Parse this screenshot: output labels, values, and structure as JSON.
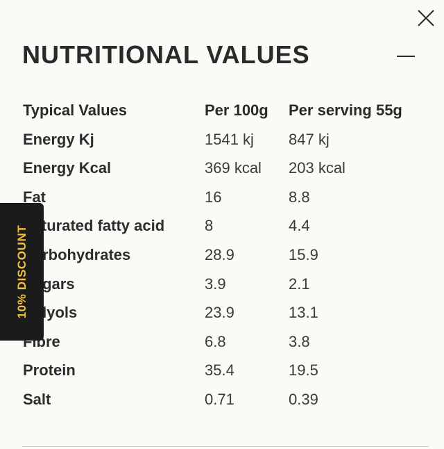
{
  "panel": {
    "title": "NUTRITIONAL VALUES"
  },
  "icons": {
    "close": "close-icon",
    "collapse": "minus-icon"
  },
  "discount_tab": {
    "label": "10% DISCOUNT",
    "background": "#1b1b1b",
    "text_color": "#f0c23b"
  },
  "table": {
    "headers": [
      "Typical Values",
      "Per 100g",
      "Per serving 55g"
    ],
    "rows": [
      {
        "name": "Energy Kj",
        "per100": "1541 kj",
        "perServing": "847 kj"
      },
      {
        "name": "Energy Kcal",
        "per100": "369 kcal",
        "perServing": "203 kcal"
      },
      {
        "name": "Fat",
        "per100": "16",
        "perServing": "8.8"
      },
      {
        "name": "Saturated fatty acid",
        "per100": "8",
        "perServing": "4.4"
      },
      {
        "name": "Carbohydrates",
        "per100": "28.9",
        "perServing": "15.9"
      },
      {
        "name": "Sugars",
        "per100": "3.9",
        "perServing": "2.1"
      },
      {
        "name": "Polyols",
        "per100": "23.9",
        "perServing": "13.1"
      },
      {
        "name": "Fibre",
        "per100": "6.8",
        "perServing": "3.8"
      },
      {
        "name": "Protein",
        "per100": "35.4",
        "perServing": "19.5"
      },
      {
        "name": "Salt",
        "per100": "0.71",
        "perServing": "0.39"
      }
    ]
  }
}
